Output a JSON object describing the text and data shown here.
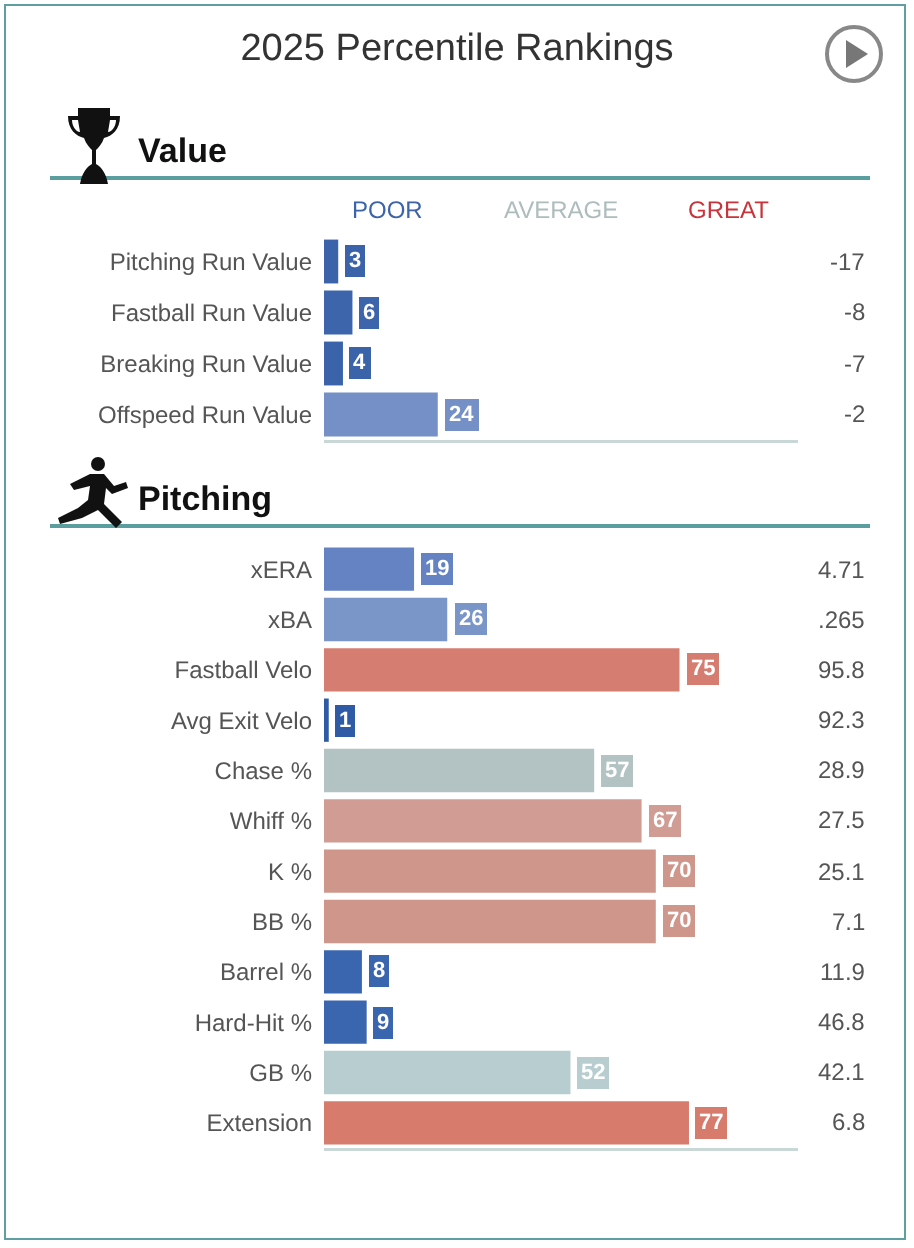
{
  "chart_data": [
    {
      "type": "bar",
      "orientation": "horizontal",
      "title": "2025 Percentile Rankings",
      "subtitle": "Value",
      "categories": [
        "Pitching Run Value",
        "Fastball Run Value",
        "Breaking Run Value",
        "Offspeed Run Value"
      ],
      "values": [
        3,
        6,
        4,
        24
      ],
      "colors": [
        "#3b63aa",
        "#3d65ab",
        "#3b63aa",
        "#7490c6"
      ],
      "xlim": [
        0,
        100
      ],
      "data_labels": true,
      "annotations": [
        "POOR",
        "AVERAGE",
        "GREAT",
        "-17",
        "-8",
        "-7",
        "-2"
      ]
    },
    {
      "type": "bar",
      "orientation": "horizontal",
      "title": "Pitching",
      "categories": [
        "xERA",
        "xBA",
        "Fastball Velo",
        "Avg Exit Velo",
        "Chase %",
        "Whiff %",
        "K %",
        "BB %",
        "Barrel %",
        "Hard-Hit %",
        "GB %",
        "Extension"
      ],
      "values": [
        19,
        26,
        75,
        1,
        57,
        67,
        70,
        70,
        8,
        9,
        52,
        77
      ],
      "colors": [
        "#6583c2",
        "#7a95c8",
        "#d57d70",
        "#2f5aa6",
        "#b3c2c2",
        "#d09c94",
        "#cf968c",
        "#cf968c",
        "#3a66b0",
        "#3a66b0",
        "#b7cdcf",
        "#d77b6d"
      ],
      "xlim": [
        0,
        100
      ],
      "data_labels": true,
      "annotations": [
        "4.71",
        ".265",
        "95.8",
        "92.3",
        "28.9",
        "27.5",
        "25.1",
        "7.1",
        "11.9",
        "46.8",
        "42.1",
        "6.8"
      ]
    }
  ]
}
